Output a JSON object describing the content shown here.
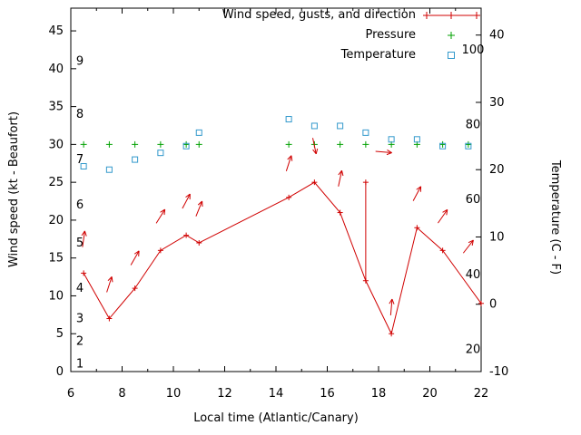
{
  "chart_data": {
    "type": "line",
    "xlabel": "Local time (Atlantic/Canary)",
    "ylabel_left": "Wind speed (kt - Beaufort)",
    "ylabel_right": "Temperature (C - F)",
    "x_range": [
      6,
      22
    ],
    "y_left_range_kt": [
      0,
      48
    ],
    "y_right_range_c": [
      -10,
      44
    ],
    "x_major_ticks": [
      6,
      8,
      10,
      12,
      14,
      16,
      18,
      20,
      22
    ],
    "x_minor_ticks": [
      7,
      9,
      11,
      13,
      15,
      17,
      19,
      21
    ],
    "y_left_ticks_kt": [
      0,
      5,
      10,
      15,
      20,
      25,
      30,
      35,
      40,
      45
    ],
    "y_right_ticks_c": [
      -10,
      0,
      10,
      20,
      30,
      40
    ],
    "beaufort_scale": [
      {
        "label": "1",
        "kt": 1
      },
      {
        "label": "2",
        "kt": 4
      },
      {
        "label": "3",
        "kt": 7
      },
      {
        "label": "4",
        "kt": 11
      },
      {
        "label": "5",
        "kt": 17
      },
      {
        "label": "6",
        "kt": 22
      },
      {
        "label": "7",
        "kt": 28
      },
      {
        "label": "8",
        "kt": 34
      },
      {
        "label": "9",
        "kt": 41
      }
    ],
    "fahrenheit_scale": [
      {
        "label": "20",
        "c": -6.7
      },
      {
        "label": "40",
        "c": 4.4
      },
      {
        "label": "60",
        "c": 15.6
      },
      {
        "label": "80",
        "c": 26.7
      },
      {
        "label": "100",
        "c": 37.8
      }
    ],
    "legend": [
      {
        "label": "Wind speed, gusts, and direction",
        "series": "wind",
        "marker": "line-plus"
      },
      {
        "label": "Pressure",
        "series": "pressure",
        "marker": "plus"
      },
      {
        "label": "Temperature",
        "series": "temperature",
        "marker": "open-square"
      }
    ],
    "colors": {
      "wind": "#d00000",
      "pressure": "#00a000",
      "temperature": "#3399cc",
      "axis": "#000000"
    },
    "series": {
      "wind_speed_kt": {
        "x": [
          6.5,
          7.5,
          8.5,
          9.5,
          10.5,
          11,
          14.5,
          15.5,
          16.5,
          17.5,
          18.5,
          19.5,
          20.5,
          22
        ],
        "kt": [
          13,
          7,
          11,
          16,
          18,
          17,
          23,
          25,
          21,
          12,
          5,
          19,
          16,
          9
        ]
      },
      "gusts": [
        {
          "x": 17.5,
          "from_kt": 12,
          "to_kt": 25
        }
      ],
      "wind_direction_arrows": [
        {
          "x": 6.5,
          "kt": 17.5,
          "deg": 8
        },
        {
          "x": 7.5,
          "kt": 11.5,
          "deg": 18
        },
        {
          "x": 8.5,
          "kt": 15,
          "deg": 30
        },
        {
          "x": 9.5,
          "kt": 20.5,
          "deg": 32
        },
        {
          "x": 10.5,
          "kt": 22.5,
          "deg": 28
        },
        {
          "x": 11,
          "kt": 21.5,
          "deg": 22
        },
        {
          "x": 14.5,
          "kt": 27.5,
          "deg": 18
        },
        {
          "x": 15.5,
          "kt": 29.8,
          "deg": 168
        },
        {
          "x": 16.5,
          "kt": 25.5,
          "deg": 12
        },
        {
          "x": 18.2,
          "kt": 29,
          "deg": 95
        },
        {
          "x": 18.5,
          "kt": 8.5,
          "deg": 5
        },
        {
          "x": 19.5,
          "kt": 23.5,
          "deg": 28
        },
        {
          "x": 20.5,
          "kt": 20.5,
          "deg": 35
        },
        {
          "x": 21.5,
          "kt": 16.5,
          "deg": 38
        }
      ],
      "pressure_marks": {
        "x": [
          6.5,
          7.5,
          8.5,
          9.5,
          10.5,
          11,
          14.5,
          15.5,
          16.5,
          17.5,
          18.5,
          19.5,
          20.5,
          21.5
        ],
        "y_kt": 30
      },
      "temperature_c": {
        "x": [
          6.5,
          7.5,
          8.5,
          9.5,
          10.5,
          11,
          14.5,
          15.5,
          16.5,
          17.5,
          18.5,
          19.5,
          20.5,
          21.5
        ],
        "c": [
          20.5,
          20,
          21.5,
          22.5,
          23.5,
          25.5,
          27.5,
          26.5,
          26.5,
          25.5,
          24.5,
          24.5,
          23.5,
          23.5
        ]
      }
    }
  }
}
